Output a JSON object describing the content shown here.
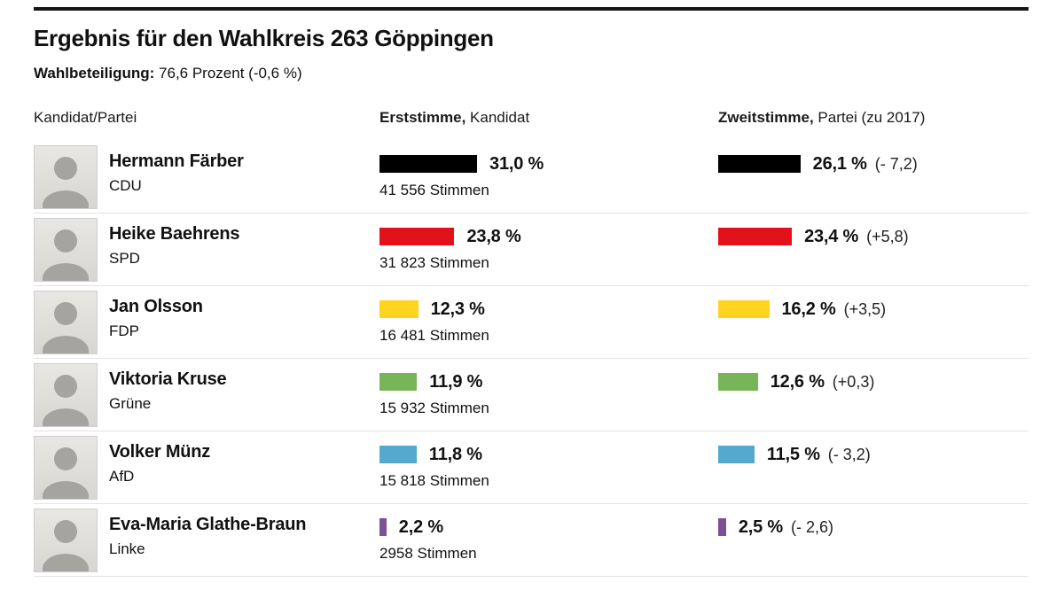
{
  "page": {
    "title": "Ergebnis für den Wahlkreis 263 Göppingen",
    "turnout_label": "Wahlbeteiligung:",
    "turnout_value": " 76,6 Prozent (-0,6 %)"
  },
  "table_header": {
    "kandidat": "Kandidat/Partei",
    "erststimme_bold": "Erststimme,",
    "erststimme_rest": " Kandidat",
    "zweitstimme_bold": "Zweitstimme,",
    "zweitstimme_rest": " Partei  (zu 2017)"
  },
  "chart_data": {
    "type": "bar",
    "title": "Ergebnis für den Wahlkreis 263 Göppingen",
    "subtitle": "Wahlbeteiligung: 76,6 Prozent (-0,6 %)",
    "categories": [
      "Hermann Färber (CDU)",
      "Heike Baehrens (SPD)",
      "Jan Olsson (FDP)",
      "Viktoria Kruse (Grüne)",
      "Volker Münz (AfD)",
      "Eva-Maria Glathe-Braun (Linke)"
    ],
    "series": [
      {
        "name": "Erststimme, Kandidat",
        "unit": "%",
        "values": [
          31.0,
          23.8,
          12.3,
          11.9,
          11.8,
          2.2
        ]
      },
      {
        "name": "Zweitstimme, Partei",
        "unit": "%",
        "values": [
          26.1,
          23.4,
          16.2,
          12.6,
          11.5,
          2.5
        ]
      }
    ],
    "erststimme_votes": [
      41556,
      31823,
      16481,
      15932,
      15818,
      2958
    ],
    "zweitstimme_change_vs_2017": [
      -7.2,
      5.8,
      3.5,
      0.3,
      -3.2,
      -2.6
    ],
    "colors": [
      "#000000",
      "#e2111c",
      "#ffd320",
      "#77b556",
      "#55a9cd",
      "#7d4f96"
    ],
    "xlim": [
      0,
      35
    ],
    "legend_position": "column-headers",
    "grid": false
  },
  "rows": [
    {
      "name": "Hermann Färber",
      "party": "CDU",
      "color": "#000000",
      "erst": {
        "pct_label": "31,0 %",
        "value": 31.0,
        "votes": "41 556  Stimmen"
      },
      "zweit": {
        "pct_label": "26,1 %",
        "value": 26.1,
        "change": "(- 7,2)"
      }
    },
    {
      "name": "Heike Baehrens",
      "party": "SPD",
      "color": "#e2111c",
      "erst": {
        "pct_label": "23,8 %",
        "value": 23.8,
        "votes": "31 823 Stimmen"
      },
      "zweit": {
        "pct_label": "23,4 %",
        "value": 23.4,
        "change": "(+5,8)"
      }
    },
    {
      "name": "Jan Olsson",
      "party": "FDP",
      "color": "#ffd320",
      "erst": {
        "pct_label": "12,3 %",
        "value": 12.3,
        "votes": "16 481 Stimmen"
      },
      "zweit": {
        "pct_label": "16,2 %",
        "value": 16.2,
        "change": "(+3,5)"
      }
    },
    {
      "name": "Viktoria Kruse",
      "party": "Grüne",
      "color": "#77b556",
      "erst": {
        "pct_label": "11,9 %",
        "value": 11.9,
        "votes": "15 932 Stimmen"
      },
      "zweit": {
        "pct_label": "12,6 %",
        "value": 12.6,
        "change": "(+0,3)"
      }
    },
    {
      "name": "Volker Münz",
      "party": "AfD",
      "color": "#55a9cd",
      "erst": {
        "pct_label": "11,8 %",
        "value": 11.8,
        "votes": "15 818 Stimmen"
      },
      "zweit": {
        "pct_label": "11,5 %",
        "value": 11.5,
        "change": "(- 3,2)"
      }
    },
    {
      "name": "Eva-Maria Glathe-Braun",
      "party": "Linke",
      "color": "#7d4f96",
      "erst": {
        "pct_label": "2,2 %",
        "value": 2.2,
        "votes": "2958 Stimmen"
      },
      "zweit": {
        "pct_label": "2,5 %",
        "value": 2.5,
        "change": "(- 2,6)"
      }
    }
  ]
}
